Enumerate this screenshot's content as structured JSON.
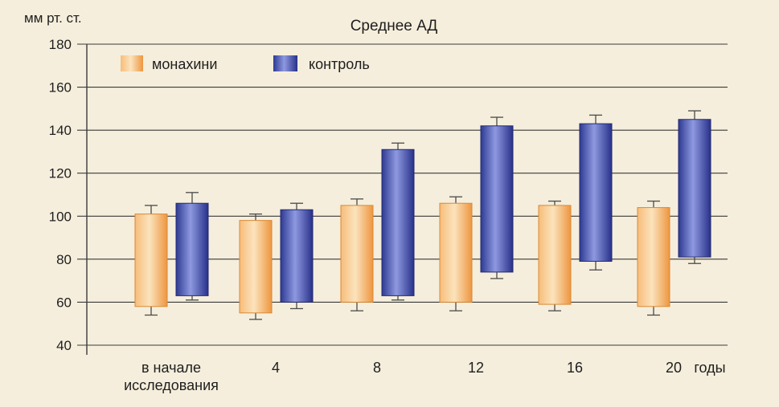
{
  "chart_data": {
    "type": "bar",
    "title": "Среднее АД",
    "ylabel": "мм рт. ст.",
    "xlabel": "годы",
    "ylim": [
      40,
      180
    ],
    "yticks": [
      40,
      60,
      80,
      100,
      120,
      140,
      160,
      180
    ],
    "categories": [
      [
        "в начале",
        "исследования"
      ],
      [
        "4"
      ],
      [
        "8"
      ],
      [
        "12"
      ],
      [
        "16"
      ],
      [
        "20"
      ]
    ],
    "grid": true,
    "legend_position": "top-left",
    "series": [
      {
        "name": "монахини",
        "color": "#f0a04b",
        "low": [
          58,
          55,
          60,
          60,
          59,
          58
        ],
        "high": [
          101,
          98,
          105,
          106,
          105,
          104
        ],
        "err_low": [
          54,
          52,
          56,
          56,
          56,
          54
        ],
        "err_high": [
          105,
          101,
          108,
          109,
          107,
          107
        ]
      },
      {
        "name": "контроль",
        "color": "#3b4aa8",
        "low": [
          63,
          60,
          63,
          74,
          79,
          81
        ],
        "high": [
          106,
          103,
          131,
          142,
          143,
          145
        ],
        "err_low": [
          61,
          57,
          61,
          71,
          75,
          78
        ],
        "err_high": [
          111,
          106,
          134,
          146,
          147,
          149
        ]
      }
    ]
  }
}
